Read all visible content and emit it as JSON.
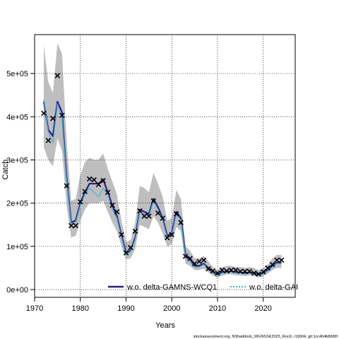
{
  "chart_data": {
    "type": "line",
    "xlabel": "Years",
    "ylabel": "Catch",
    "xlim": [
      1970,
      2027
    ],
    "ylim": [
      -18000,
      590000
    ],
    "x_ticks": [
      1970,
      1980,
      1990,
      2000,
      2010,
      2020
    ],
    "x_tick_labels": [
      "1970",
      "1980",
      "1990",
      "2000",
      "2010",
      "2020"
    ],
    "y_ticks": [
      0,
      100000,
      200000,
      300000,
      400000,
      500000
    ],
    "y_tick_labels": [
      "0e+00",
      "1e+05",
      "2e+05",
      "3e+05",
      "4e+05",
      "5e+05"
    ],
    "grid": true,
    "legend_position": "bottom",
    "footer": "stockassessment.org, NShaddock_WGNSSK2025_Run3, r19004, git:1cc464b8086f",
    "colors": {
      "band": "#bebebe",
      "series1": "#2e1a87",
      "series2": "#3fb6d4",
      "observed": "#000000",
      "grid": "#000000",
      "axis": "#000000"
    },
    "years": [
      1972,
      1973,
      1974,
      1975,
      1976,
      1977,
      1978,
      1979,
      1980,
      1981,
      1982,
      1983,
      1984,
      1985,
      1986,
      1987,
      1988,
      1989,
      1990,
      1991,
      1992,
      1993,
      1994,
      1995,
      1996,
      1997,
      1998,
      1999,
      2000,
      2001,
      2002,
      2003,
      2004,
      2005,
      2006,
      2007,
      2008,
      2009,
      2010,
      2011,
      2012,
      2013,
      2014,
      2015,
      2016,
      2017,
      2018,
      2019,
      2020,
      2021,
      2022,
      2023,
      2024
    ],
    "series": [
      {
        "name": "w.o. delta-GAMNS-WCQ1",
        "values": [
          435000,
          370000,
          355000,
          435000,
          410000,
          260000,
          155000,
          160000,
          200000,
          225000,
          245000,
          245000,
          245000,
          255000,
          225000,
          195000,
          170000,
          125000,
          85000,
          90000,
          120000,
          185000,
          180000,
          175000,
          210000,
          190000,
          165000,
          125000,
          130000,
          180000,
          165000,
          80000,
          70000,
          55000,
          55000,
          60000,
          50000,
          40000,
          35000,
          40000,
          42000,
          42000,
          40000,
          40000,
          38000,
          40000,
          38000,
          35000,
          38000,
          45000,
          55000,
          62000,
          62000
        ]
      },
      {
        "name": "w.o. delta-GAI",
        "values": [
          440000,
          365000,
          340000,
          430000,
          400000,
          255000,
          150000,
          155000,
          195000,
          220000,
          235000,
          225000,
          215000,
          235000,
          220000,
          185000,
          165000,
          120000,
          80000,
          88000,
          115000,
          180000,
          175000,
          170000,
          205000,
          185000,
          160000,
          120000,
          125000,
          175000,
          160000,
          75000,
          65000,
          52000,
          52000,
          58000,
          48000,
          38000,
          33000,
          38000,
          40000,
          40000,
          38000,
          38000,
          36000,
          38000,
          36000,
          33000,
          36000,
          43000,
          52000,
          60000,
          60000
        ]
      }
    ],
    "band": {
      "lower": [
        330000,
        300000,
        285000,
        350000,
        320000,
        195000,
        120000,
        125000,
        160000,
        185000,
        200000,
        200000,
        200000,
        205000,
        180000,
        155000,
        135000,
        100000,
        70000,
        72000,
        95000,
        150000,
        145000,
        140000,
        170000,
        155000,
        130000,
        100000,
        105000,
        145000,
        135000,
        60000,
        55000,
        45000,
        45000,
        48000,
        40000,
        32000,
        28000,
        32000,
        35000,
        35000,
        33000,
        33000,
        31000,
        33000,
        31000,
        28000,
        31000,
        37000,
        45000,
        50000,
        50000
      ],
      "upper": [
        565000,
        480000,
        455000,
        570000,
        545000,
        345000,
        205000,
        210000,
        265000,
        295000,
        305000,
        300000,
        300000,
        315000,
        280000,
        250000,
        220000,
        160000,
        110000,
        115000,
        155000,
        240000,
        235000,
        225000,
        270000,
        245000,
        215000,
        160000,
        165000,
        230000,
        210000,
        100000,
        90000,
        72000,
        72000,
        78000,
        65000,
        52000,
        45000,
        52000,
        55000,
        55000,
        52000,
        52000,
        50000,
        52000,
        50000,
        45000,
        50000,
        58000,
        72000,
        80000,
        80000
      ]
    },
    "observed": [
      408000,
      345000,
      396000,
      495000,
      403000,
      240000,
      148000,
      148000,
      203000,
      227000,
      256000,
      254000,
      243000,
      252000,
      225000,
      195000,
      180000,
      127000,
      85000,
      97000,
      135000,
      182000,
      170000,
      170000,
      205000,
      177000,
      165000,
      120000,
      127000,
      175000,
      155000,
      77000,
      72000,
      60000,
      65000,
      68000,
      48000,
      43000,
      38000,
      45000,
      43000,
      45000,
      45000,
      42000,
      42000,
      42000,
      38000,
      36000,
      41000,
      50000,
      58000,
      68000,
      68000
    ]
  }
}
